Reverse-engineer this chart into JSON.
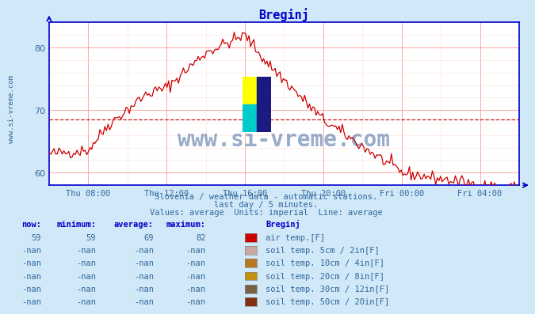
{
  "title": "Breginj",
  "bg_color": "#d0e8f8",
  "plot_bg_color": "#ffffff",
  "line_color": "#cc0000",
  "avg_line_color": "#cc0000",
  "avg_value": 68.5,
  "y_min": 58,
  "y_max": 84,
  "y_ticks": [
    60,
    70,
    80
  ],
  "x_labels": [
    "Thu 08:00",
    "Thu 12:00",
    "Thu 16:00",
    "Thu 20:00",
    "Fri 00:00",
    "Fri 04:00"
  ],
  "subtitle1": "Slovenia / weather data - automatic stations.",
  "subtitle2": "last day / 5 minutes.",
  "subtitle3": "Values: average  Units: imperial  Line: average",
  "watermark": "www.si-vreme.com",
  "table_headers": [
    "now:",
    "minimum:",
    "average:",
    "maximum:",
    "Breginj"
  ],
  "table_rows": [
    [
      "59",
      "59",
      "69",
      "82",
      "#cc0000",
      "air temp.[F]"
    ],
    [
      "-nan",
      "-nan",
      "-nan",
      "-nan",
      "#c8a8a0",
      "soil temp. 5cm / 2in[F]"
    ],
    [
      "-nan",
      "-nan",
      "-nan",
      "-nan",
      "#b87820",
      "soil temp. 10cm / 4in[F]"
    ],
    [
      "-nan",
      "-nan",
      "-nan",
      "-nan",
      "#c09010",
      "soil temp. 20cm / 8in[F]"
    ],
    [
      "-nan",
      "-nan",
      "-nan",
      "-nan",
      "#786040",
      "soil temp. 30cm / 12in[F]"
    ],
    [
      "-nan",
      "-nan",
      "-nan",
      "-nan",
      "#803010",
      "soil temp. 50cm / 20in[F]"
    ]
  ],
  "grid_color_major": "#ff9999",
  "grid_color_minor": "#ffdddd",
  "axis_color": "#0000cc",
  "tick_color": "#336699",
  "title_color": "#0000cc",
  "subtitle_color": "#336699",
  "table_header_color": "#0000cc",
  "table_value_color": "#336699"
}
